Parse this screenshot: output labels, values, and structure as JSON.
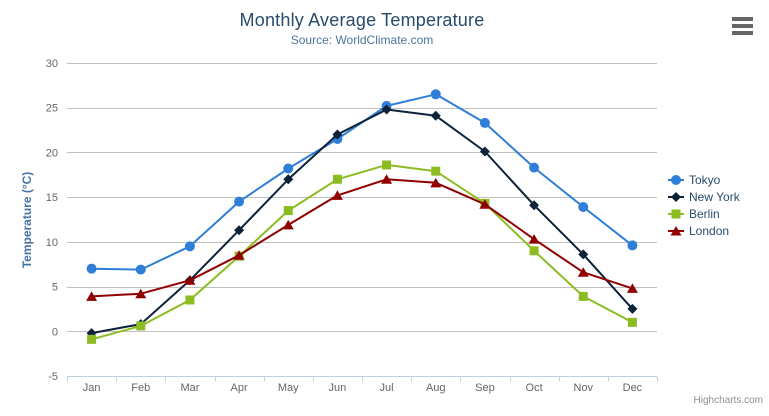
{
  "chart_data": {
    "type": "line",
    "title": "Monthly Average Temperature",
    "subtitle": "Source: WorldClimate.com",
    "xlabel": "",
    "ylabel": "Temperature (°C)",
    "categories": [
      "Jan",
      "Feb",
      "Mar",
      "Apr",
      "May",
      "Jun",
      "Jul",
      "Aug",
      "Sep",
      "Oct",
      "Nov",
      "Dec"
    ],
    "series": [
      {
        "name": "Tokyo",
        "color": "#2f7ed8",
        "marker": "circle",
        "values": [
          7.0,
          6.9,
          9.5,
          14.5,
          18.2,
          21.5,
          25.2,
          26.5,
          23.3,
          18.3,
          13.9,
          9.6
        ]
      },
      {
        "name": "New York",
        "color": "#0d233a",
        "marker": "diamond",
        "values": [
          -0.2,
          0.8,
          5.7,
          11.3,
          17.0,
          22.0,
          24.8,
          24.1,
          20.1,
          14.1,
          8.6,
          2.5
        ]
      },
      {
        "name": "Berlin",
        "color": "#8bbc21",
        "marker": "square",
        "values": [
          -0.9,
          0.6,
          3.5,
          8.4,
          13.5,
          17.0,
          18.6,
          17.9,
          14.3,
          9.0,
          3.9,
          1.0
        ]
      },
      {
        "name": "London",
        "color": "#910000",
        "marker": "triangle",
        "values": [
          3.9,
          4.2,
          5.7,
          8.5,
          11.9,
          15.2,
          17.0,
          16.6,
          14.2,
          10.3,
          6.6,
          4.8
        ]
      }
    ],
    "ylim": [
      -5,
      30
    ],
    "yticks": [
      -5,
      0,
      5,
      10,
      15,
      20,
      25,
      30
    ],
    "grid": true,
    "legend_position": "right"
  },
  "colors": {
    "title": "#274b6d",
    "subtitle": "#4d759e",
    "y_axis_title": "#4572a7",
    "axis_labels": "#666666",
    "gridline": "#c0c0c0",
    "axis_line": "#c0d0e0",
    "legend_text": "#274b6d",
    "credits": "#909090"
  },
  "toolbar": {
    "export_icon": "hamburger-icon"
  },
  "credits": {
    "label": "Highcharts.com"
  }
}
